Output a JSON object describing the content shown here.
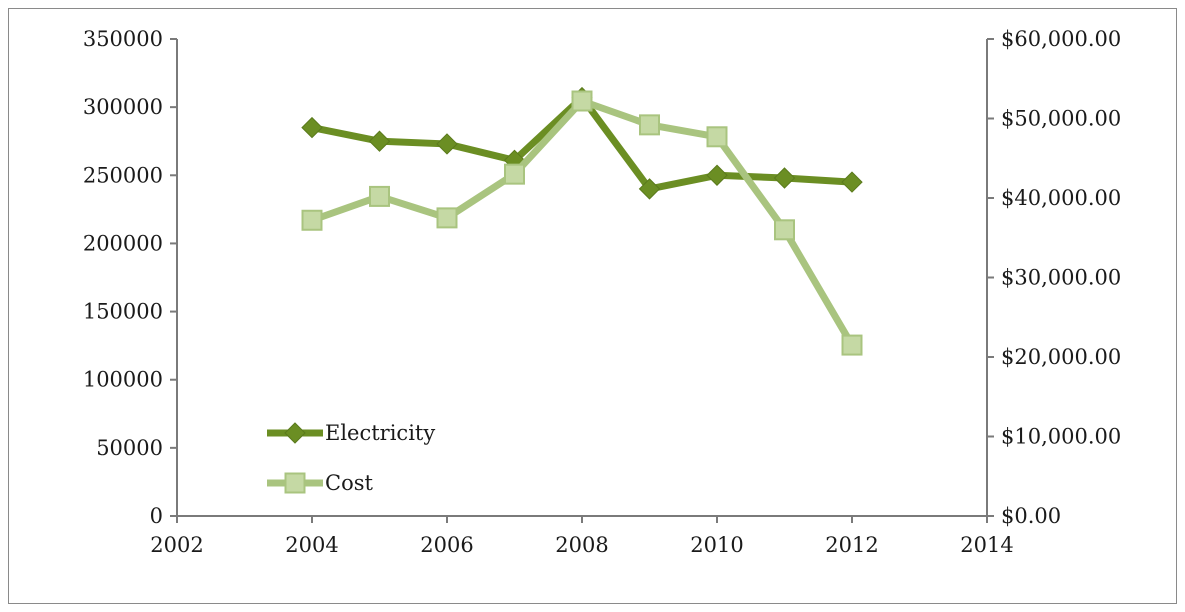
{
  "chart_data": {
    "type": "line",
    "title": "",
    "xlabel": "",
    "ylabel": "",
    "x": [
      2004,
      2005,
      2006,
      2007,
      2008,
      2009,
      2010,
      2011,
      2012
    ],
    "xlim": [
      2002,
      2014
    ],
    "x_ticks": [
      "2002",
      "2004",
      "2006",
      "2008",
      "2010",
      "2012",
      "2014"
    ],
    "ylim_left": [
      0,
      350000
    ],
    "y_left_ticks": [
      "0",
      "50000",
      "100000",
      "150000",
      "200000",
      "250000",
      "300000",
      "350000"
    ],
    "ylim_right": [
      0,
      60000
    ],
    "y_right_ticks": [
      "$0.00",
      "$10,000.00",
      "$20,000.00",
      "$30,000.00",
      "$40,000.00",
      "$50,000.00",
      "$60,000.00"
    ],
    "grid": false,
    "legend_position": "bottom-left",
    "series": [
      {
        "name": "Electricity",
        "axis": "left",
        "marker": "diamond",
        "color": "#6b8e23",
        "values": [
          285000,
          275000,
          273000,
          261000,
          307000,
          240000,
          250000,
          248000,
          245000
        ]
      },
      {
        "name": "Cost",
        "axis": "right",
        "marker": "square",
        "color": "#a9c47f",
        "values": [
          37200,
          40200,
          37500,
          43000,
          52200,
          49200,
          47700,
          36000,
          21500
        ]
      }
    ]
  }
}
